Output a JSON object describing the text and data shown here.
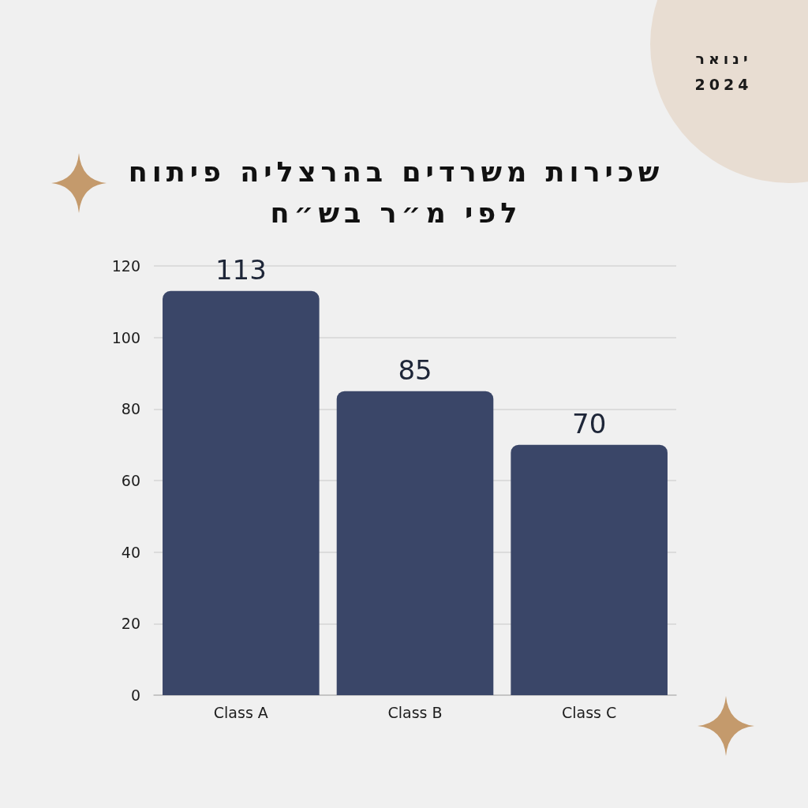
{
  "chart_data": {
    "type": "bar",
    "title": "שכירות משרדים בהרצליה פיתוח\nלפי מ״ר בש״ח",
    "subtitle": "ינואר 2024",
    "categories": [
      "Class A",
      "Class B",
      "Class C"
    ],
    "values": [
      113,
      85,
      70
    ],
    "color": "#3a4668",
    "ylim": [
      0,
      120
    ],
    "yticks": [
      0,
      20,
      40,
      60,
      80,
      100,
      120
    ],
    "grid": "y",
    "data_labels": true
  }
}
